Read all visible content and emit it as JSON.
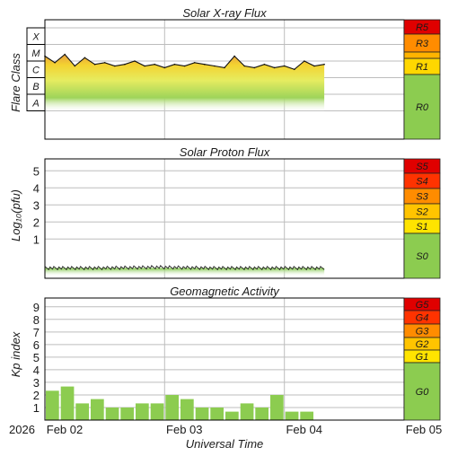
{
  "chart_data": [
    {
      "type": "area",
      "title": "Solar X-ray Flux",
      "ylabel": "Flare Class",
      "class_labels": [
        "A",
        "B",
        "C",
        "M",
        "X"
      ],
      "ylim_log10_wm2": [
        -8,
        -3
      ],
      "x_range_days": [
        "2026-02-02",
        "2026-02-05"
      ],
      "data_end": "2026-02-04T08:00",
      "series": [
        {
          "x": [
            "2026-02-02T00:00",
            "2026-02-02T02:00",
            "2026-02-02T04:00",
            "2026-02-02T06:00",
            "2026-02-02T08:00",
            "2026-02-02T10:00",
            "2026-02-02T12:00",
            "2026-02-02T14:00",
            "2026-02-02T16:00",
            "2026-02-02T18:00",
            "2026-02-02T20:00",
            "2026-02-02T22:00",
            "2026-02-03T00:00",
            "2026-02-03T02:00",
            "2026-02-03T04:00",
            "2026-02-03T06:00",
            "2026-02-03T08:00",
            "2026-02-03T10:00",
            "2026-02-03T12:00",
            "2026-02-03T14:00",
            "2026-02-03T16:00",
            "2026-02-03T18:00",
            "2026-02-03T20:00",
            "2026-02-03T22:00",
            "2026-02-04T00:00",
            "2026-02-04T02:00",
            "2026-02-04T04:00",
            "2026-02-04T06:00",
            "2026-02-04T08:00"
          ],
          "log10_flux": [
            -4.7,
            -5.1,
            -4.6,
            -5.3,
            -4.8,
            -5.2,
            -5.1,
            -5.3,
            -5.2,
            -5.0,
            -5.3,
            -5.2,
            -5.4,
            -5.2,
            -5.3,
            -5.1,
            -5.2,
            -5.3,
            -5.4,
            -4.7,
            -5.3,
            -5.4,
            -5.2,
            -5.4,
            -5.3,
            -5.5,
            -5.0,
            -5.3,
            -5.2
          ]
        }
      ],
      "scale_labels": [
        {
          "label": "R5",
          "color": "#e00000"
        },
        {
          "label": "R3",
          "color": "#ff8c00"
        },
        {
          "label": "R1",
          "color": "#ffd700"
        },
        {
          "label": "R0",
          "color": "#8ccc50"
        }
      ],
      "grid": true
    },
    {
      "type": "area",
      "title": "Solar Proton Flux",
      "ylabel": "Log₁₀(pfu)",
      "yticks": [
        "1",
        "2",
        "3",
        "4",
        "5"
      ],
      "ylim": [
        -1.3,
        5.7
      ],
      "x_range_days": [
        "2026-02-02",
        "2026-02-05"
      ],
      "data_end": "2026-02-04T08:00",
      "series": [
        {
          "x": [
            "2026-02-02T00:00",
            "2026-02-02T12:00",
            "2026-02-03T00:00",
            "2026-02-03T12:00",
            "2026-02-04T00:00",
            "2026-02-04T08:00"
          ],
          "log10_pfu": [
            -0.7,
            -0.7,
            -0.65,
            -0.7,
            -0.7,
            -0.7
          ]
        }
      ],
      "scale_labels": [
        {
          "label": "S5",
          "color": "#e00000"
        },
        {
          "label": "S4",
          "color": "#ff3300"
        },
        {
          "label": "S3",
          "color": "#ff8c00"
        },
        {
          "label": "S2",
          "color": "#ffc400"
        },
        {
          "label": "S1",
          "color": "#ffe400"
        },
        {
          "label": "S0",
          "color": "#8ccc50"
        }
      ],
      "grid": true
    },
    {
      "type": "bar",
      "title": "Geomagnetic Activity",
      "ylabel": "Kp index",
      "yticks": [
        "1",
        "2",
        "3",
        "4",
        "5",
        "6",
        "7",
        "8",
        "9"
      ],
      "ylim": [
        0,
        9.7
      ],
      "x_range_days": [
        "2026-02-02",
        "2026-02-05"
      ],
      "x": [
        "2026-02-02T00:00",
        "2026-02-02T03:00",
        "2026-02-02T06:00",
        "2026-02-02T09:00",
        "2026-02-02T12:00",
        "2026-02-02T15:00",
        "2026-02-02T18:00",
        "2026-02-02T21:00",
        "2026-02-03T00:00",
        "2026-02-03T03:00",
        "2026-02-03T06:00",
        "2026-02-03T09:00",
        "2026-02-03T12:00",
        "2026-02-03T15:00",
        "2026-02-03T18:00",
        "2026-02-03T21:00",
        "2026-02-04T00:00",
        "2026-02-04T03:00"
      ],
      "values": [
        2.33,
        2.67,
        1.33,
        1.67,
        1.0,
        1.0,
        1.33,
        1.33,
        2.0,
        1.67,
        1.0,
        1.0,
        0.67,
        1.33,
        1.0,
        2.0,
        0.67,
        0.67
      ],
      "scale_labels": [
        {
          "label": "G5",
          "color": "#e00000"
        },
        {
          "label": "G4",
          "color": "#ff3300"
        },
        {
          "label": "G3",
          "color": "#ff8c00"
        },
        {
          "label": "G2",
          "color": "#ffc400"
        },
        {
          "label": "G1",
          "color": "#ffe400"
        },
        {
          "label": "G0",
          "color": "#8ccc50"
        }
      ],
      "grid": true
    }
  ],
  "x_axis": {
    "labels": [
      "Feb 02",
      "Feb 03",
      "Feb 04",
      "Feb 05"
    ],
    "year_label": "2026",
    "title": "Universal Time"
  }
}
